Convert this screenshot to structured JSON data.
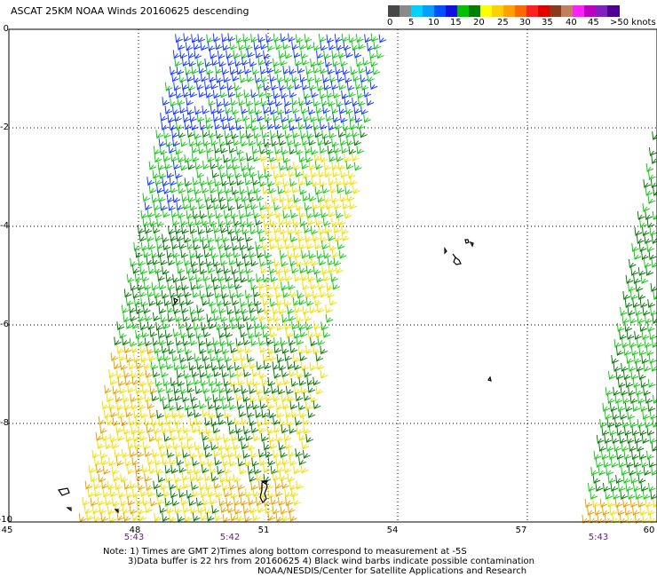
{
  "title": "ASCAT 25KM NOAA Winds 20160625 descending",
  "legend": {
    "swatches": [
      "#474747",
      "#8a8a8a",
      "#00d2ff",
      "#00a0ff",
      "#0050ff",
      "#1010e0",
      "#00c000",
      "#008000",
      "#ffff00",
      "#ffd000",
      "#ffa000",
      "#ff6a00",
      "#ff2020",
      "#e00000",
      "#8b3a1a",
      "#c08060",
      "#ff20ff",
      "#c000c0",
      "#8020c0",
      "#500090"
    ],
    "labels": [
      "0",
      "5",
      "10",
      "15",
      "20",
      "25",
      "30",
      "35",
      "40",
      "45",
      ">50 knots"
    ]
  },
  "axes": {
    "y_ticks": [
      "0",
      "-2",
      "-4",
      "-6",
      "-8",
      "-10"
    ],
    "x_ticks": [
      "45",
      "48",
      "51",
      "54",
      "57",
      "60"
    ]
  },
  "time_labels": [
    "5:43",
    "5:42",
    "5:43"
  ],
  "notes": {
    "line1": "Note: 1) Times are GMT 2)Times along bottom correspond to measurement at -5S",
    "line2": "3)Data buffer is 22 hrs from 20160625 4) Black wind barbs indicate possible contamination",
    "line3": "NOAA/NESDIS/Center for Satellite Applications and Research"
  },
  "map_data": {
    "lon_range": [
      45,
      60
    ],
    "lat_range": [
      -10,
      0
    ],
    "grid": true,
    "colors": {
      "blue": "#1a3cff",
      "lightgreen": "#18c818",
      "darkgreen": "#0a7a0a",
      "yellow": "#f0e000",
      "orange": "#e8a000",
      "coast": "#000000"
    }
  }
}
